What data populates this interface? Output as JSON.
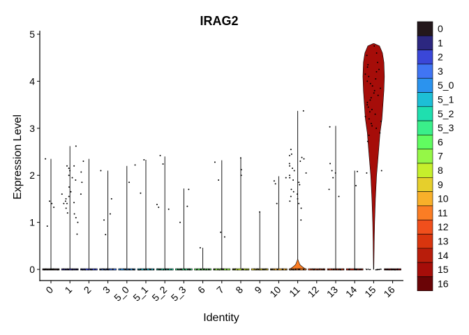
{
  "chart_data": {
    "type": "violin",
    "title": "IRAG2",
    "xlabel": "Identity",
    "ylabel": "Expression Level",
    "ylim": [
      -0.2,
      5.1
    ],
    "yticks": [
      0,
      1,
      2,
      3,
      4,
      5
    ],
    "grid": false,
    "legend_position": "right",
    "groups": [
      {
        "id": "0",
        "color": "#23171b",
        "max": 2.35,
        "points": [
          1.45,
          1.4,
          1.32,
          0.92,
          2.35
        ]
      },
      {
        "id": "1",
        "color": "#2c2780",
        "max": 2.62,
        "points": [
          2.2,
          2.15,
          2.1,
          2.0,
          1.9,
          1.75,
          1.55,
          1.5,
          1.45,
          1.42,
          1.4,
          1.3,
          1.18,
          1.1,
          1.0,
          0.75,
          2.62,
          2.2,
          1.95,
          1.65,
          1.6,
          1.4,
          1.2
        ]
      },
      {
        "id": "2",
        "color": "#3a47d8",
        "max": 2.35,
        "points": [
          2.3,
          2.07,
          1.85,
          1.6
        ]
      },
      {
        "id": "3",
        "color": "#4075f3",
        "max": 2.1,
        "points": [
          1.5,
          1.18,
          1.05,
          0.74,
          2.1
        ]
      },
      {
        "id": "5_0",
        "color": "#2b93ee",
        "max": 2.2,
        "points": [
          2.22,
          1.85
        ]
      },
      {
        "id": "5_1",
        "color": "#1dbfd6",
        "max": 2.33,
        "points": [
          2.33,
          1.62
        ]
      },
      {
        "id": "5_2",
        "color": "#1fdfaf",
        "max": 2.4,
        "points": [
          2.42,
          2.24,
          1.38,
          1.32,
          1.28
        ]
      },
      {
        "id": "5_3",
        "color": "#3aef8a",
        "max": 1.72,
        "points": [
          1.7,
          1.34,
          1.0
        ]
      },
      {
        "id": "6",
        "color": "#61fc60",
        "max": 0.46,
        "points": [
          0.46
        ]
      },
      {
        "id": "7",
        "color": "#95f747",
        "max": 2.32,
        "points": [
          2.28,
          1.9,
          0.79,
          0.69
        ]
      },
      {
        "id": "8",
        "color": "#c6ef2c",
        "max": 2.37,
        "points": [
          2.37,
          2.12,
          2.0
        ]
      },
      {
        "id": "9",
        "color": "#e6cf2c",
        "max": 1.22,
        "points": [
          1.22
        ]
      },
      {
        "id": "10",
        "color": "#f8b02a",
        "max": 1.98,
        "points": [
          1.95,
          1.88,
          1.82,
          1.4
        ]
      },
      {
        "id": "11",
        "color": "#fb7d24",
        "max": 3.37,
        "points": [
          3.37,
          2.55,
          2.45,
          2.42,
          2.38,
          2.35,
          2.3,
          2.25,
          2.2,
          2.15,
          2.1,
          2.05,
          2.0,
          1.95,
          1.9,
          1.85,
          1.8,
          1.7,
          1.65,
          1.6,
          1.55,
          1.5,
          1.45,
          1.4,
          1.3,
          1.05
        ],
        "bulb": 0.22
      },
      {
        "id": "12",
        "color": "#f04f1c",
        "max": 0.0,
        "points": []
      },
      {
        "id": "13",
        "color": "#d9350e",
        "max": 3.05,
        "points": [
          3.03,
          2.25,
          2.1,
          2.05,
          1.95,
          1.7,
          1.55
        ]
      },
      {
        "id": "14",
        "color": "#b81d0b",
        "max": 2.1,
        "points": [
          2.08,
          1.78
        ]
      },
      {
        "id": "15",
        "color": "#a60d09",
        "min": 0.0,
        "max": 4.8,
        "points": [
          4.75,
          4.6,
          4.55,
          4.4,
          4.35,
          4.3,
          4.25,
          4.2,
          4.15,
          4.1,
          4.05,
          4.0,
          3.95,
          3.9,
          3.85,
          3.8,
          3.75,
          3.7,
          3.65,
          3.6,
          3.55,
          3.5,
          3.45,
          3.4,
          3.35,
          3.3,
          3.25,
          3.2,
          3.15,
          3.1,
          3.05,
          3.0,
          2.9,
          2.85,
          2.72,
          2.1,
          2.05
        ]
      },
      {
        "id": "16",
        "color": "#6a0406",
        "max": 0.0,
        "points": []
      }
    ]
  }
}
